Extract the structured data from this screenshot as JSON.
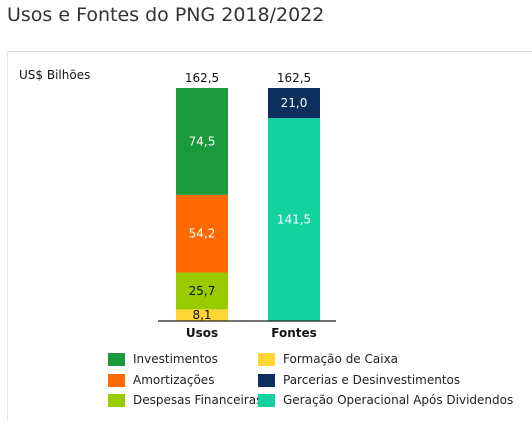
{
  "page": {
    "title": "Usos e Fontes do PNG 2018/2022"
  },
  "chart_data": {
    "type": "bar",
    "stacked": true,
    "title": "",
    "unit_label": "US$ Bilhões",
    "categories": [
      "Usos",
      "Fontes"
    ],
    "totals": [
      "162,5",
      "162,5"
    ],
    "series": [
      {
        "name": "Formação de Caixa",
        "color": "#ffd633",
        "values": [
          8.1,
          0
        ],
        "labels": [
          "8,1",
          ""
        ]
      },
      {
        "name": "Despesas Financeiras",
        "color": "#99cc00",
        "values": [
          25.7,
          0
        ],
        "labels": [
          "25,7",
          ""
        ]
      },
      {
        "name": "Amortizações",
        "color": "#ff6a00",
        "values": [
          54.2,
          0
        ],
        "labels": [
          "54,2",
          ""
        ]
      },
      {
        "name": "Investimentos",
        "color": "#1a9a3a",
        "values": [
          74.5,
          0
        ],
        "labels": [
          "74,5",
          ""
        ]
      },
      {
        "name": "Geração Operacional Após Dividendos",
        "color": "#12d3a0",
        "values": [
          0,
          141.5
        ],
        "labels": [
          "",
          "141,5"
        ]
      },
      {
        "name": "Parcerias e Desinvestimentos",
        "color": "#0d2f5e",
        "values": [
          0,
          21.0
        ],
        "labels": [
          "",
          "21,0"
        ]
      }
    ],
    "ylim": [
      0,
      162.5
    ],
    "grid": false,
    "legend_position": "bottom"
  },
  "legend": {
    "items": [
      {
        "label": "Investimentos",
        "color": "#1a9a3a",
        "icon": "green-swatch"
      },
      {
        "label": "Formação de Caixa",
        "color": "#ffd633",
        "icon": "yellow-swatch"
      },
      {
        "label": "Amortizações",
        "color": "#ff6a00",
        "icon": "orange-swatch"
      },
      {
        "label": "Parcerias e Desinvestimentos",
        "color": "#0d2f5e",
        "icon": "navy-swatch"
      },
      {
        "label": "Despesas Financeiras",
        "color": "#99cc00",
        "icon": "lime-swatch"
      },
      {
        "label": "Geração Operacional Após Dividendos",
        "color": "#12d3a0",
        "icon": "teal-swatch"
      }
    ]
  }
}
